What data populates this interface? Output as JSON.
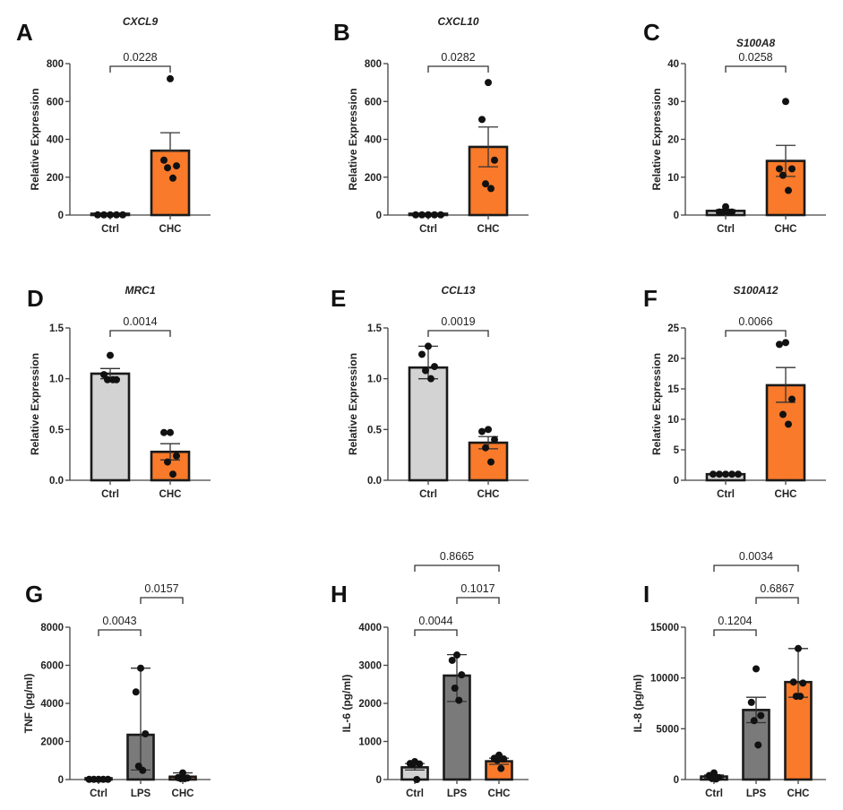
{
  "colors": {
    "ctrl": "#d3d3d3",
    "lps": "#7a7a7a",
    "chc": "#f97a2a",
    "axis": "#444444",
    "outline": "#1a1a1a",
    "point": "#111111"
  },
  "chart_data": [
    {
      "panel": "A",
      "type": "bar",
      "title": "CXCL9",
      "ylabel": "Relative Expression",
      "ylim": [
        0,
        800
      ],
      "yticks": [
        0,
        200,
        400,
        600,
        800
      ],
      "ytick_labels": [
        "0",
        "200",
        "400",
        "600",
        "800"
      ],
      "categories": [
        "Ctrl",
        "CHC"
      ],
      "groups": [
        "ctrl",
        "chc"
      ],
      "values": [
        1,
        340
      ],
      "error": [
        [
          1,
          1
        ],
        [
          340,
          435
        ]
      ],
      "points": [
        [
          1,
          1,
          1,
          1,
          1
        ],
        [
          720,
          290,
          260,
          250,
          195
        ]
      ],
      "comparisons": [
        {
          "from": 0,
          "to": 1,
          "p": "0.0228",
          "level": 0
        }
      ]
    },
    {
      "panel": "B",
      "type": "bar",
      "title": "CXCL10",
      "ylabel": "Relative Expression",
      "ylim": [
        0,
        800
      ],
      "yticks": [
        0,
        200,
        400,
        600,
        800
      ],
      "ytick_labels": [
        "0",
        "200",
        "400",
        "600",
        "800"
      ],
      "categories": [
        "Ctrl",
        "CHC"
      ],
      "groups": [
        "ctrl",
        "chc"
      ],
      "values": [
        1,
        360
      ],
      "error": [
        [
          1,
          1
        ],
        [
          255,
          465
        ]
      ],
      "points": [
        [
          1,
          1,
          1,
          1,
          1
        ],
        [
          700,
          505,
          290,
          165,
          140
        ]
      ],
      "comparisons": [
        {
          "from": 0,
          "to": 1,
          "p": "0.0282",
          "level": 0
        }
      ]
    },
    {
      "panel": "C",
      "type": "bar",
      "title": "S100A8",
      "ylabel": "Relative Expression",
      "ylim": [
        0,
        40
      ],
      "yticks": [
        0,
        10,
        20,
        30,
        40
      ],
      "ytick_labels": [
        "0",
        "10",
        "20",
        "30",
        "40"
      ],
      "categories": [
        "Ctrl",
        "CHC"
      ],
      "groups": [
        "ctrl",
        "chc"
      ],
      "values": [
        1.1,
        14.3
      ],
      "error": [
        [
          0.8,
          1.4
        ],
        [
          10.2,
          18.4
        ]
      ],
      "points": [
        [
          2.2,
          0.8,
          0.8,
          0.8,
          0.8
        ],
        [
          30,
          12.2,
          12.2,
          10.5,
          6.5
        ]
      ],
      "comparisons": [
        {
          "from": 0,
          "to": 1,
          "p": "0.0258",
          "level": 0
        }
      ]
    },
    {
      "panel": "D",
      "type": "bar",
      "title": "MRC1",
      "ylabel": "Relative Expression",
      "ylim": [
        0,
        1.5
      ],
      "yticks": [
        0,
        0.5,
        1.0,
        1.5
      ],
      "ytick_labels": [
        "0.0",
        "0.5",
        "1.0",
        "1.5"
      ],
      "categories": [
        "Ctrl",
        "CHC"
      ],
      "groups": [
        "ctrl",
        "chc"
      ],
      "values": [
        1.05,
        0.28
      ],
      "error": [
        [
          1.0,
          1.1
        ],
        [
          0.2,
          0.36
        ]
      ],
      "points": [
        [
          1.23,
          1.04,
          0.99,
          0.99,
          0.99
        ],
        [
          0.47,
          0.47,
          0.24,
          0.18,
          0.06
        ]
      ],
      "comparisons": [
        {
          "from": 0,
          "to": 1,
          "p": "0.0014",
          "level": 0
        }
      ]
    },
    {
      "panel": "E",
      "type": "bar",
      "title": "CCL13",
      "ylabel": "Relative Expression",
      "ylim": [
        0,
        1.5
      ],
      "yticks": [
        0,
        0.5,
        1.0,
        1.5
      ],
      "ytick_labels": [
        "0.0",
        "0.5",
        "1.0",
        "1.5"
      ],
      "categories": [
        "Ctrl",
        "CHC"
      ],
      "groups": [
        "ctrl",
        "chc"
      ],
      "values": [
        1.11,
        0.37
      ],
      "error": [
        [
          1.0,
          1.32
        ],
        [
          0.31,
          0.43
        ]
      ],
      "points": [
        [
          1.32,
          1.24,
          1.12,
          1.08,
          1.0
        ],
        [
          0.5,
          0.48,
          0.4,
          0.32,
          0.18
        ]
      ],
      "comparisons": [
        {
          "from": 0,
          "to": 1,
          "p": "0.0019",
          "level": 0
        }
      ]
    },
    {
      "panel": "F",
      "type": "bar",
      "title": "S100A12",
      "ylabel": "Relative Expression",
      "ylim": [
        0,
        25
      ],
      "yticks": [
        0,
        5,
        10,
        15,
        20,
        25
      ],
      "ytick_labels": [
        "0",
        "5",
        "10",
        "15",
        "20",
        "25"
      ],
      "categories": [
        "Ctrl",
        "CHC"
      ],
      "groups": [
        "ctrl",
        "chc"
      ],
      "values": [
        1.0,
        15.6
      ],
      "error": [
        [
          1.0,
          1.0
        ],
        [
          12.8,
          18.5
        ]
      ],
      "points": [
        [
          1,
          1,
          1,
          1,
          1
        ],
        [
          22.6,
          22.3,
          13.3,
          10.8,
          9.2
        ]
      ],
      "comparisons": [
        {
          "from": 0,
          "to": 1,
          "p": "0.0066",
          "level": 0
        }
      ]
    },
    {
      "panel": "G",
      "type": "bar",
      "title": "",
      "ylabel": "TNF (pg/ml)",
      "ylim": [
        0,
        8000
      ],
      "yticks": [
        0,
        2000,
        4000,
        6000,
        8000
      ],
      "ytick_labels": [
        "0",
        "2000",
        "4000",
        "6000",
        "8000"
      ],
      "categories": [
        "Ctrl",
        "LPS",
        "CHC"
      ],
      "groups": [
        "ctrl",
        "lps",
        "chc"
      ],
      "values": [
        10,
        2350,
        150
      ],
      "error": [
        [
          10,
          10
        ],
        [
          500,
          5850
        ],
        [
          50,
          350
        ]
      ],
      "points": [
        [
          10,
          10,
          10,
          10,
          10
        ],
        [
          5850,
          4600,
          2400,
          700,
          480
        ],
        [
          350,
          100,
          80,
          50,
          50
        ]
      ],
      "comparisons": [
        {
          "from": 0,
          "to": 1,
          "p": "0.0043",
          "level": 0
        },
        {
          "from": 1,
          "to": 2,
          "p": "0.0157",
          "level": 1
        }
      ]
    },
    {
      "panel": "H",
      "type": "bar",
      "title": "",
      "ylabel": "IL-6 (pg/ml)",
      "ylim": [
        0,
        4000
      ],
      "yticks": [
        0,
        1000,
        2000,
        3000,
        4000
      ],
      "ytick_labels": [
        "0",
        "1000",
        "2000",
        "3000",
        "4000"
      ],
      "categories": [
        "Ctrl",
        "LPS",
        "CHC"
      ],
      "groups": [
        "ctrl",
        "lps",
        "chc"
      ],
      "values": [
        320,
        2730,
        480
      ],
      "error": [
        [
          250,
          420
        ],
        [
          2050,
          3280
        ],
        [
          400,
          560
        ]
      ],
      "points": [
        [
          470,
          420,
          410,
          390,
          0
        ],
        [
          3270,
          3130,
          2750,
          2400,
          2080
        ],
        [
          640,
          560,
          540,
          510,
          290
        ]
      ],
      "comparisons": [
        {
          "from": 0,
          "to": 1,
          "p": "0.0044",
          "level": 0
        },
        {
          "from": 1,
          "to": 2,
          "p": "0.1017",
          "level": 1
        },
        {
          "from": 0,
          "to": 2,
          "p": "0.8665",
          "level": 2
        }
      ]
    },
    {
      "panel": "I",
      "type": "bar",
      "title": "",
      "ylabel": "IL-8 (pg/ml)",
      "ylim": [
        0,
        15000
      ],
      "yticks": [
        0,
        5000,
        10000,
        15000
      ],
      "ytick_labels": [
        "0",
        "5000",
        "10000",
        "15000"
      ],
      "categories": [
        "Ctrl",
        "LPS",
        "CHC"
      ],
      "groups": [
        "ctrl",
        "lps",
        "chc"
      ],
      "values": [
        300,
        6850,
        9600
      ],
      "error": [
        [
          150,
          450
        ],
        [
          5600,
          8100
        ],
        [
          8100,
          12900
        ]
      ],
      "points": [
        [
          650,
          400,
          200,
          100,
          50
        ],
        [
          10900,
          7600,
          6300,
          5800,
          3400
        ],
        [
          12900,
          9600,
          9500,
          8200,
          8200
        ]
      ],
      "comparisons": [
        {
          "from": 0,
          "to": 1,
          "p": "0.1204",
          "level": 0
        },
        {
          "from": 1,
          "to": 2,
          "p": "0.6867",
          "level": 1
        },
        {
          "from": 0,
          "to": 2,
          "p": "0.0034",
          "level": 2
        }
      ]
    }
  ]
}
